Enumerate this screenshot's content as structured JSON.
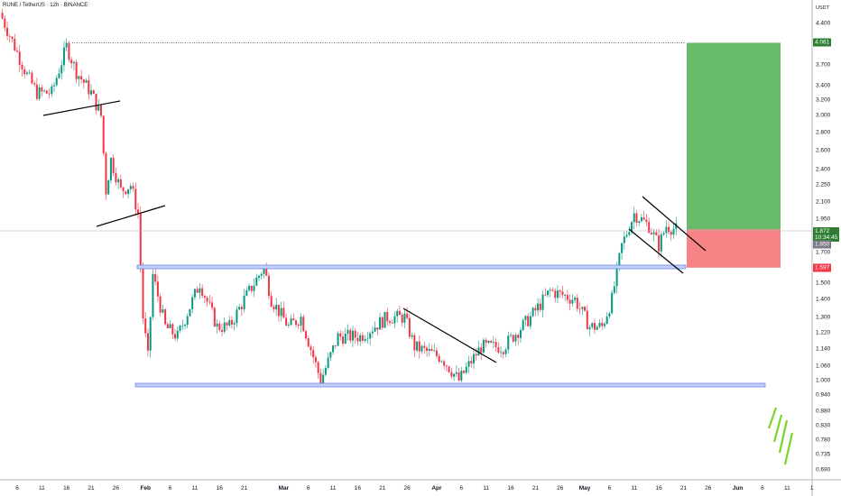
{
  "title": "RUNE / TetherUS · 12h · BINANCE",
  "currency": "USDT",
  "colors": {
    "up": "#089981",
    "down": "#f23645",
    "target": "#4caf50",
    "stop": "#f77c80",
    "band": "#2962ff"
  },
  "price_axis": [
    "4.400",
    "3.700",
    "3.400",
    "3.200",
    "3.000",
    "2.800",
    "2.600",
    "2.400",
    "2.250",
    "2.100",
    "1.950",
    "1.700",
    "1.500",
    "1.400",
    "1.300",
    "1.220",
    "1.140",
    "1.060",
    "1.000",
    "0.940",
    "0.880",
    "0.830",
    "0.780",
    "0.735",
    "0.690"
  ],
  "price_tags": {
    "target": "4.061",
    "last": "1.872",
    "countdown": "10:34:45",
    "prev": "1.850",
    "stop": "1.597"
  },
  "time_axis": [
    {
      "label": "6",
      "day": 6
    },
    {
      "label": "11",
      "day": 11
    },
    {
      "label": "16",
      "day": 16
    },
    {
      "label": "21",
      "day": 21
    },
    {
      "label": "26",
      "day": 26
    },
    {
      "label": "Feb",
      "day": 32,
      "bold": true
    },
    {
      "label": "6",
      "day": 37
    },
    {
      "label": "11",
      "day": 42
    },
    {
      "label": "16",
      "day": 47
    },
    {
      "label": "21",
      "day": 52
    },
    {
      "label": "Mar",
      "day": 60,
      "bold": true
    },
    {
      "label": "6",
      "day": 65
    },
    {
      "label": "11",
      "day": 70
    },
    {
      "label": "16",
      "day": 75
    },
    {
      "label": "21",
      "day": 80
    },
    {
      "label": "26",
      "day": 85
    },
    {
      "label": "Apr",
      "day": 91,
      "bold": true
    },
    {
      "label": "6",
      "day": 96
    },
    {
      "label": "11",
      "day": 101
    },
    {
      "label": "16",
      "day": 106
    },
    {
      "label": "21",
      "day": 111
    },
    {
      "label": "26",
      "day": 116
    },
    {
      "label": "May",
      "day": 121,
      "bold": true
    },
    {
      "label": "6",
      "day": 126
    },
    {
      "label": "11",
      "day": 131
    },
    {
      "label": "16",
      "day": 136
    },
    {
      "label": "21",
      "day": 141
    },
    {
      "label": "26",
      "day": 146
    },
    {
      "label": "Jun",
      "day": 152,
      "bold": true
    },
    {
      "label": "6",
      "day": 157
    },
    {
      "label": "11",
      "day": 162
    },
    {
      "label": "1",
      "day": 167
    }
  ],
  "chart_data": {
    "type": "candlestick",
    "symbol": "RUNE / TetherUS",
    "interval": "12h",
    "yscale": "log",
    "ylim": [
      0.66,
      4.7
    ],
    "approx_path": [
      [
        2.5,
        4.6
      ],
      [
        8,
        3.55
      ],
      [
        10,
        3.3
      ],
      [
        13,
        3.3
      ],
      [
        16,
        4.0
      ],
      [
        18,
        3.6
      ],
      [
        21,
        3.3
      ],
      [
        23,
        3.0
      ],
      [
        24,
        2.2
      ],
      [
        25,
        2.5
      ],
      [
        27,
        2.2
      ],
      [
        29,
        2.25
      ],
      [
        30.5,
        2.0
      ],
      [
        31.5,
        1.3
      ],
      [
        32.5,
        1.1
      ],
      [
        33.5,
        1.55
      ],
      [
        36,
        1.25
      ],
      [
        38.5,
        1.2
      ],
      [
        43,
        1.5
      ],
      [
        46.5,
        1.25
      ],
      [
        49,
        1.25
      ],
      [
        52,
        1.4
      ],
      [
        56,
        1.6
      ],
      [
        57.5,
        1.4
      ],
      [
        61,
        1.25
      ],
      [
        63.5,
        1.3
      ],
      [
        67.5,
        1.0
      ],
      [
        71,
        1.2
      ],
      [
        75.5,
        1.2
      ],
      [
        81,
        1.3
      ],
      [
        84.5,
        1.3
      ],
      [
        86.5,
        1.15
      ],
      [
        92,
        1.1
      ],
      [
        95.5,
        1.0
      ],
      [
        97,
        1.05
      ],
      [
        100,
        1.15
      ],
      [
        104.5,
        1.15
      ],
      [
        110,
        1.3
      ],
      [
        114,
        1.45
      ],
      [
        119,
        1.4
      ],
      [
        122,
        1.25
      ],
      [
        124.5,
        1.25
      ],
      [
        126.5,
        1.4
      ],
      [
        128.5,
        1.75
      ],
      [
        131,
        2.0
      ],
      [
        134,
        1.9
      ],
      [
        136,
        1.75
      ],
      [
        137.5,
        1.9
      ],
      [
        139.5,
        1.872
      ]
    ],
    "levels": {
      "resistance": 1.6,
      "support": 0.99,
      "target": 4.061,
      "entry": 1.872,
      "stop": 1.597
    }
  }
}
